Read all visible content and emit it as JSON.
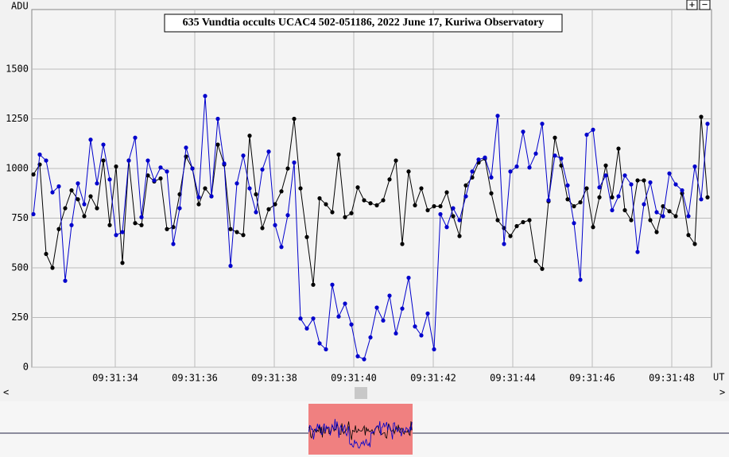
{
  "chart_data": {
    "type": "line",
    "title": "635 Vundtia occults UCAC4 502-051186, 2022 June 17, Kuriwa Observatory",
    "y_label": "ADU",
    "x_label": "UT",
    "x": [
      31.94,
      32.1,
      32.26,
      32.42,
      32.58,
      32.74,
      32.9,
      33.06,
      33.22,
      33.38,
      33.54,
      33.7,
      33.86,
      34.02,
      34.18,
      34.34,
      34.5,
      34.66,
      34.82,
      34.98,
      35.14,
      35.3,
      35.46,
      35.62,
      35.78,
      35.94,
      36.1,
      36.26,
      36.42,
      36.58,
      36.74,
      36.9,
      37.06,
      37.22,
      37.38,
      37.54,
      37.7,
      37.86,
      38.02,
      38.18,
      38.34,
      38.5,
      38.66,
      38.82,
      38.98,
      39.14,
      39.3,
      39.46,
      39.62,
      39.78,
      39.94,
      40.1,
      40.26,
      40.42,
      40.58,
      40.74,
      40.9,
      41.06,
      41.22,
      41.38,
      41.54,
      41.7,
      41.86,
      42.02,
      42.18,
      42.34,
      42.5,
      42.66,
      42.82,
      42.98,
      43.14,
      43.3,
      43.46,
      43.62,
      43.78,
      43.94,
      44.1,
      44.26,
      44.42,
      44.58,
      44.74,
      44.9,
      45.06,
      45.22,
      45.38,
      45.54,
      45.7,
      45.86,
      46.02,
      46.18,
      46.34,
      46.5,
      46.66,
      46.82,
      46.98,
      47.14,
      47.3,
      47.46,
      47.62,
      47.78,
      47.94,
      48.1,
      48.26,
      48.42,
      48.58,
      48.74,
      48.9
    ],
    "series": [
      {
        "color": "#000000",
        "values": [
          970,
          1020,
          570,
          500,
          695,
          800,
          890,
          845,
          760,
          860,
          800,
          1040,
          715,
          1010,
          525,
          1040,
          725,
          715,
          965,
          935,
          950,
          695,
          705,
          870,
          1060,
          1000,
          820,
          900,
          860,
          1120,
          1020,
          695,
          680,
          665,
          1165,
          870,
          700,
          795,
          820,
          885,
          1000,
          1250,
          900,
          655,
          415,
          850,
          820,
          780,
          1070,
          755,
          775,
          905,
          840,
          825,
          815,
          840,
          945,
          1040,
          620,
          985,
          815,
          900,
          790,
          810,
          810,
          880,
          760,
          660,
          915,
          955,
          1030,
          1050,
          875,
          740,
          700,
          660,
          710,
          730,
          740,
          535,
          495,
          835,
          1155,
          1015,
          845,
          810,
          830,
          900,
          705,
          855,
          1015,
          855,
          1100,
          790,
          740,
          940,
          940,
          740,
          680,
          810,
          785,
          760,
          875,
          665,
          620,
          1260,
          855
        ]
      },
      {
        "color": "#0000cc",
        "values": [
          770,
          1070,
          1040,
          880,
          910,
          435,
          715,
          925,
          820,
          1145,
          925,
          1120,
          945,
          665,
          680,
          1040,
          1155,
          755,
          1040,
          940,
          1005,
          985,
          620,
          800,
          1105,
          1000,
          855,
          1365,
          860,
          1250,
          1025,
          510,
          925,
          1065,
          900,
          780,
          995,
          1085,
          715,
          605,
          765,
          1030,
          245,
          195,
          245,
          120,
          90,
          415,
          255,
          320,
          215,
          55,
          40,
          150,
          300,
          235,
          360,
          170,
          295,
          450,
          205,
          160,
          270,
          90,
          770,
          705,
          800,
          740,
          860,
          985,
          1045,
          1055,
          955,
          1265,
          620,
          985,
          1010,
          1185,
          1005,
          1075,
          1225,
          840,
          1065,
          1050,
          915,
          725,
          440,
          1170,
          1195,
          905,
          965,
          790,
          860,
          965,
          920,
          580,
          820,
          930,
          780,
          760,
          975,
          920,
          890,
          760,
          1010,
          845,
          1225
        ]
      }
    ],
    "xlim": [
      31.9,
      49.0
    ],
    "xticks": [
      {
        "value": 34,
        "label": "09:31:34"
      },
      {
        "value": 36,
        "label": "09:31:36"
      },
      {
        "value": 38,
        "label": "09:31:38"
      },
      {
        "value": 40,
        "label": "09:31:40"
      },
      {
        "value": 42,
        "label": "09:31:42"
      },
      {
        "value": 44,
        "label": "09:31:44"
      },
      {
        "value": 46,
        "label": "09:31:46"
      },
      {
        "value": 48,
        "label": "09:31:48"
      }
    ],
    "ylim": [
      0,
      1800
    ],
    "yticks": [
      0,
      250,
      500,
      750,
      1000,
      1250,
      1500
    ],
    "grid": true
  },
  "ui": {
    "zoom_in": "+",
    "zoom_out": "−",
    "scroll_left": "<",
    "scroll_right": ">"
  }
}
